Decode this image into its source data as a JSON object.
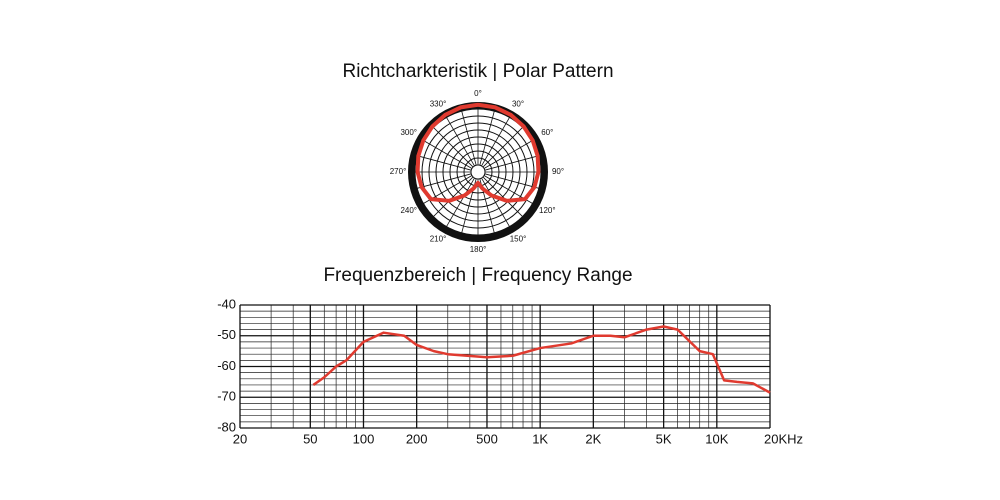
{
  "chart_data": [
    {
      "type": "polar",
      "title": "Richtcharkteristik | Polar Pattern",
      "angleticks": [
        {
          "value": 0,
          "label": "0°"
        },
        {
          "value": 30,
          "label": "30°"
        },
        {
          "value": 60,
          "label": "60°"
        },
        {
          "value": 90,
          "label": "90°"
        },
        {
          "value": 120,
          "label": "120°"
        },
        {
          "value": 150,
          "label": "150°"
        },
        {
          "value": 180,
          "label": "180°"
        },
        {
          "value": 210,
          "label": "210°"
        },
        {
          "value": 240,
          "label": "240°"
        },
        {
          "value": 270,
          "label": "270°"
        },
        {
          "value": 300,
          "label": "300°"
        },
        {
          "value": 330,
          "label": "330°"
        }
      ],
      "rlim": [
        0,
        1
      ],
      "series": [
        {
          "color": "#e03a2f",
          "theta": [
            0,
            15,
            30,
            45,
            60,
            75,
            90,
            105,
            120,
            135,
            150,
            165,
            180,
            195,
            210,
            225,
            240,
            255,
            270,
            285,
            300,
            315,
            330,
            345
          ],
          "r": [
            0.99,
            0.985,
            0.97,
            0.95,
            0.93,
            0.91,
            0.89,
            0.86,
            0.8,
            0.6,
            0.4,
            0.25,
            0.16,
            0.25,
            0.4,
            0.6,
            0.8,
            0.86,
            0.89,
            0.91,
            0.93,
            0.95,
            0.97,
            0.985
          ]
        }
      ]
    },
    {
      "type": "line",
      "title": "Frequenzbereich | Frequency Range",
      "xscale": "log",
      "xlim": [
        20,
        20000
      ],
      "ylim": [
        -80,
        -40
      ],
      "xticks": [
        20,
        50,
        100,
        200,
        500,
        {
          "value": 1000,
          "label": "1K"
        },
        {
          "value": 2000,
          "label": "2K"
        },
        {
          "value": 5000,
          "label": "5K"
        },
        {
          "value": 10000,
          "label": "10K"
        },
        {
          "value": 20000,
          "label": "20KHz"
        }
      ],
      "yticks": [
        -40,
        -50,
        -60,
        -70,
        -80
      ],
      "xgrid": [
        30,
        40,
        60,
        70,
        80,
        90,
        300,
        400,
        600,
        700,
        800,
        900,
        3000,
        4000,
        6000,
        7000,
        8000,
        9000
      ],
      "ygrid": [
        -42,
        -44,
        -46,
        -48,
        -52,
        -54,
        -56,
        -58,
        -62,
        -64,
        -66,
        -68,
        -72,
        -74,
        -76,
        -78
      ],
      "series": [
        {
          "color": "#e03a2f",
          "x": [
            52,
            60,
            70,
            80,
            100,
            130,
            170,
            200,
            250,
            300,
            500,
            700,
            1000,
            1500,
            2000,
            2500,
            3000,
            4000,
            5000,
            6000,
            8000,
            9500,
            11000,
            13000,
            16000,
            20000
          ],
          "values": [
            -66,
            -63.5,
            -60,
            -58,
            -52,
            -49,
            -50,
            -53,
            -55,
            -56,
            -57,
            -56.5,
            -54,
            -52.5,
            -50,
            -50,
            -50.5,
            -48,
            -47,
            -48,
            -55,
            -56,
            -64.5,
            -65,
            -65.5,
            -68.5
          ]
        }
      ]
    }
  ]
}
